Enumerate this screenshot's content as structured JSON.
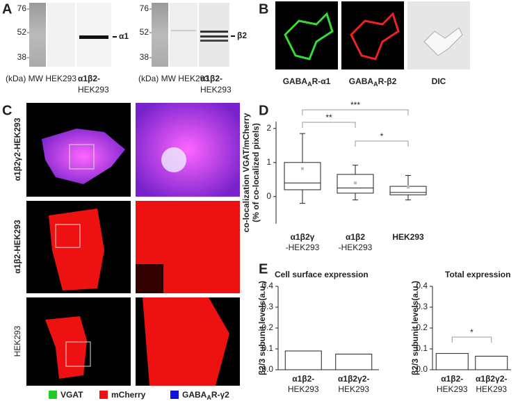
{
  "panel_a": {
    "letter": "A",
    "blots": [
      {
        "ticks": [
          "76",
          "52",
          "38"
        ],
        "band_label": "α1",
        "lanes": "(kDa) MW HEK293",
        "lane3": [
          "α1β2-",
          "HEK293"
        ]
      },
      {
        "ticks": [
          "76",
          "52",
          "38"
        ],
        "band_label": "β2",
        "lanes": "(kDa) MW HEK293",
        "lane3": [
          "α1β2-",
          "HEK293"
        ]
      }
    ]
  },
  "panel_b": {
    "letter": "B",
    "labels": [
      {
        "pre": "GABA",
        "sub": "A",
        "post": "R-α1",
        "color": "#22aa22"
      },
      {
        "pre": "GABA",
        "sub": "A",
        "post": "R-β2",
        "color": "#ee2222"
      },
      {
        "pre": "DIC",
        "color": "#222222"
      }
    ]
  },
  "panel_c": {
    "letter": "C",
    "rows": [
      "α1β2γ2-HEK293",
      "α1β2-HEK293",
      "HEK293"
    ],
    "legend": [
      {
        "pre": "VGAT",
        "color": "#22cc22"
      },
      {
        "pre": "mCherry",
        "color": "#ee1111"
      },
      {
        "pre": "GABA",
        "sub": "A",
        "post": "R-γ2",
        "color": "#1111dd"
      }
    ]
  },
  "chart_data": [
    {
      "type": "box",
      "panel": "D",
      "ylabel": [
        "co-localization VGAT/mCherry",
        "(% of co-localized pixels)"
      ],
      "categories": [
        [
          "α1β2γ",
          "-HEK293"
        ],
        [
          "α1β2",
          "-HEK293"
        ],
        [
          "HEK293"
        ]
      ],
      "boxes": [
        {
          "min": -0.2,
          "q1": 0.2,
          "median": 0.4,
          "q3": 1.0,
          "max": 1.85,
          "mean": 0.82
        },
        {
          "min": -0.1,
          "q1": 0.1,
          "median": 0.25,
          "q3": 0.65,
          "max": 0.92,
          "mean": 0.4
        },
        {
          "min": -0.1,
          "q1": 0.05,
          "median": 0.12,
          "q3": 0.3,
          "max": 0.62,
          "mean": 0.28
        }
      ],
      "annotations": [
        {
          "text": "***",
          "from": 0,
          "to": 2
        },
        {
          "text": "**",
          "from": 0,
          "to": 1
        },
        {
          "text": "*",
          "from": 1,
          "to": 2
        }
      ],
      "ylim": [
        -0.8,
        2.2
      ],
      "yticks": [
        0,
        1,
        2
      ]
    },
    {
      "type": "bar",
      "panel": "E",
      "title": "Cell surface expression",
      "ylabel": "β2/3 subunit levels(a.u.)",
      "categories": [
        [
          "α1β2-",
          "HEK293"
        ],
        [
          "α1β2γ2-",
          "HEK293"
        ]
      ],
      "values": [
        0.09,
        0.075
      ],
      "color": "#ffffff",
      "ylim": [
        0,
        0.4
      ],
      "yticks": [
        {
          "value": 0,
          "label": "0.0"
        },
        {
          "value": 0.1,
          "label": "0.1"
        },
        {
          "value": 0.2,
          "label": "0.2"
        },
        {
          "value": 0.3,
          "label": "0.3"
        },
        {
          "value": 0.4,
          "label": "0.4"
        }
      ]
    },
    {
      "type": "bar",
      "title": "Total expression",
      "ylabel": "β2/3 subunit levels(a.u.)",
      "categories": [
        [
          "α1β2-",
          "HEK293"
        ],
        [
          "α1β2γ2-",
          "HEK293"
        ]
      ],
      "values": [
        0.078,
        0.065
      ],
      "color": "#ffffff",
      "annotations": [
        {
          "text": "*",
          "from": 0,
          "to": 1
        }
      ],
      "ylim": [
        0,
        0.4
      ],
      "yticks": [
        {
          "value": 0,
          "label": "0.0"
        },
        {
          "value": 0.1,
          "label": "0.1"
        },
        {
          "value": 0.2,
          "label": "0.2"
        },
        {
          "value": 0.3,
          "label": "0.3"
        },
        {
          "value": 0.4,
          "label": "0.4"
        }
      ]
    }
  ]
}
